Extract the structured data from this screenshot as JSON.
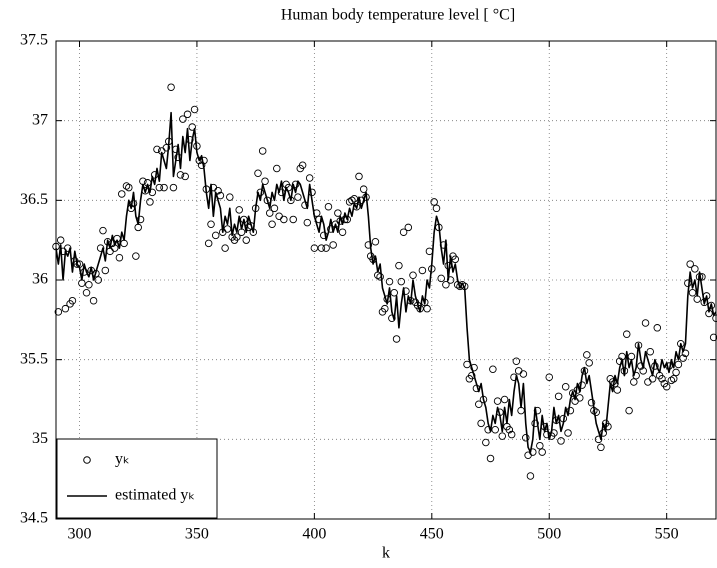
{
  "chart_data": {
    "type": "line",
    "title": "Human body temperature level [ °C]",
    "x_label": "k",
    "xlim": [
      290,
      571
    ],
    "ylim": [
      34.5,
      37.5
    ],
    "xticks": [
      300,
      350,
      400,
      450,
      500,
      550
    ],
    "yticks": [
      34.5,
      35,
      35.5,
      36,
      36.5,
      37,
      37.5
    ],
    "grid": true,
    "legend": "lower left",
    "x": [
      290,
      291,
      292,
      293,
      294,
      295,
      296,
      297,
      298,
      299,
      300,
      301,
      302,
      303,
      304,
      305,
      306,
      307,
      308,
      309,
      310,
      311,
      312,
      313,
      314,
      315,
      316,
      317,
      318,
      319,
      320,
      321,
      322,
      323,
      324,
      325,
      326,
      327,
      328,
      329,
      330,
      331,
      332,
      333,
      334,
      335,
      336,
      337,
      338,
      339,
      340,
      341,
      342,
      343,
      344,
      345,
      346,
      347,
      348,
      349,
      350,
      351,
      352,
      353,
      354,
      355,
      356,
      357,
      358,
      359,
      360,
      361,
      362,
      363,
      364,
      365,
      366,
      367,
      368,
      369,
      370,
      371,
      372,
      373,
      374,
      375,
      376,
      377,
      378,
      379,
      380,
      381,
      382,
      383,
      384,
      385,
      386,
      387,
      388,
      389,
      390,
      391,
      392,
      393,
      394,
      395,
      396,
      397,
      398,
      399,
      400,
      401,
      402,
      403,
      404,
      405,
      406,
      407,
      408,
      409,
      410,
      411,
      412,
      413,
      414,
      415,
      416,
      417,
      418,
      419,
      420,
      421,
      422,
      423,
      424,
      425,
      426,
      427,
      428,
      429,
      430,
      431,
      432,
      433,
      434,
      435,
      436,
      437,
      438,
      439,
      440,
      441,
      442,
      443,
      444,
      445,
      446,
      447,
      448,
      449,
      450,
      451,
      452,
      453,
      454,
      455,
      456,
      457,
      458,
      459,
      460,
      461,
      462,
      463,
      464,
      465,
      466,
      467,
      468,
      469,
      470,
      471,
      472,
      473,
      474,
      475,
      476,
      477,
      478,
      479,
      480,
      481,
      482,
      483,
      484,
      485,
      486,
      487,
      488,
      489,
      490,
      491,
      492,
      493,
      494,
      495,
      496,
      497,
      498,
      499,
      500,
      501,
      502,
      503,
      504,
      505,
      506,
      507,
      508,
      509,
      510,
      511,
      512,
      513,
      514,
      515,
      516,
      517,
      518,
      519,
      520,
      521,
      522,
      523,
      524,
      525,
      526,
      527,
      528,
      529,
      530,
      531,
      532,
      533,
      534,
      535,
      536,
      537,
      538,
      539,
      540,
      541,
      542,
      543,
      544,
      545,
      546,
      547,
      548,
      549,
      550,
      551,
      552,
      553,
      554,
      555,
      556,
      557,
      558,
      559,
      560,
      561,
      562,
      563,
      564,
      565,
      566,
      567,
      568,
      569,
      570,
      571
    ],
    "series": [
      {
        "name": "yₖ",
        "color": "#000000",
        "mode": "markers",
        "values": [
          36.21,
          35.8,
          36.25,
          36.18,
          35.82,
          36.2,
          35.85,
          35.87,
          36.12,
          36.1,
          36.1,
          35.98,
          36.05,
          35.92,
          35.97,
          36.06,
          35.87,
          36.04,
          36.0,
          36.2,
          36.31,
          36.06,
          36.24,
          36.18,
          36.23,
          36.2,
          36.26,
          36.14,
          36.54,
          36.23,
          36.59,
          36.58,
          36.45,
          36.48,
          36.15,
          36.33,
          36.38,
          36.62,
          36.56,
          36.61,
          36.49,
          36.55,
          36.66,
          36.82,
          36.58,
          36.81,
          36.58,
          36.83,
          36.87,
          37.21,
          36.58,
          36.82,
          36.77,
          36.66,
          37.01,
          36.65,
          37.04,
          36.88,
          36.96,
          37.07,
          36.84,
          36.75,
          36.72,
          36.75,
          36.57,
          36.23,
          36.35,
          36.58,
          36.28,
          36.56,
          36.53,
          36.3,
          36.2,
          36.32,
          36.52,
          36.27,
          36.25,
          36.27,
          36.44,
          36.3,
          36.38,
          36.25,
          36.33,
          36.34,
          36.3,
          36.45,
          36.67,
          36.55,
          36.81,
          36.62,
          36.5,
          36.42,
          36.35,
          36.45,
          36.7,
          36.4,
          36.55,
          36.38,
          36.6,
          36.58,
          36.5,
          36.38,
          36.6,
          36.52,
          36.7,
          36.72,
          36.47,
          36.36,
          36.64,
          36.55,
          36.2,
          36.42,
          36.38,
          36.2,
          36.28,
          36.2,
          36.46,
          36.32,
          36.22,
          36.35,
          36.42,
          36.37,
          36.3,
          36.38,
          36.38,
          36.49,
          36.5,
          36.51,
          36.46,
          36.65,
          36.5,
          36.57,
          36.52,
          36.22,
          36.15,
          36.13,
          36.24,
          36.03,
          36.02,
          35.8,
          35.82,
          35.88,
          35.99,
          35.76,
          35.92,
          35.63,
          36.09,
          35.99,
          36.3,
          35.93,
          36.33,
          35.87,
          36.03,
          35.86,
          35.84,
          35.82,
          36.06,
          35.86,
          35.82,
          36.18,
          36.07,
          36.49,
          36.45,
          36.33,
          36.01,
          36.22,
          35.97,
          36.09,
          36.0,
          36.15,
          36.13,
          35.97,
          35.96,
          35.97,
          35.96,
          35.47,
          35.38,
          35.4,
          35.45,
          35.32,
          35.22,
          35.1,
          35.25,
          34.98,
          35.06,
          34.88,
          35.44,
          35.06,
          35.24,
          35.17,
          35.02,
          35.25,
          35.08,
          35.06,
          35.03,
          35.39,
          35.49,
          35.43,
          35.18,
          35.41,
          35.01,
          34.9,
          34.77,
          34.92,
          35.1,
          35.18,
          34.96,
          34.92,
          35.08,
          35.03,
          35.39,
          35.02,
          35.04,
          35.12,
          35.27,
          34.99,
          35.13,
          35.33,
          35.04,
          35.18,
          35.29,
          35.24,
          35.31,
          35.26,
          35.34,
          35.43,
          35.53,
          35.48,
          35.23,
          35.18,
          35.17,
          35.0,
          34.95,
          35.04,
          35.1,
          35.08,
          35.38,
          35.36,
          35.35,
          35.31,
          35.49,
          35.52,
          35.43,
          35.66,
          35.18,
          35.52,
          35.36,
          35.4,
          35.59,
          35.46,
          35.43,
          35.73,
          35.36,
          35.55,
          35.38,
          35.46,
          35.7,
          35.4,
          35.38,
          35.35,
          35.33,
          35.46,
          35.37,
          35.38,
          35.42,
          35.47,
          35.6,
          35.51,
          35.54,
          35.98,
          36.1,
          35.92,
          36.07,
          35.88,
          36.02,
          36.02,
          35.86,
          35.9,
          35.79,
          35.84,
          35.64,
          35.76
        ]
      },
      {
        "name": "estimated yₖ",
        "color": "#000000",
        "mode": "lines",
        "values": [
          36.2,
          36.1,
          36.22,
          36.0,
          36.18,
          36.15,
          36.2,
          36.05,
          36.18,
          36.1,
          36.08,
          36.0,
          36.1,
          36.05,
          36.02,
          36.08,
          36.0,
          36.05,
          36.1,
          36.15,
          36.2,
          36.12,
          36.25,
          36.2,
          36.28,
          36.22,
          36.25,
          36.2,
          36.3,
          36.25,
          36.4,
          36.5,
          36.45,
          36.55,
          36.4,
          36.35,
          36.5,
          36.6,
          36.55,
          36.6,
          36.55,
          36.65,
          36.6,
          36.7,
          36.62,
          36.8,
          36.75,
          36.7,
          36.85,
          37.05,
          36.65,
          36.75,
          36.85,
          36.7,
          36.9,
          36.8,
          36.95,
          36.75,
          36.88,
          36.95,
          36.8,
          36.75,
          36.78,
          36.7,
          36.55,
          36.45,
          36.6,
          36.4,
          36.55,
          36.5,
          36.45,
          36.3,
          36.4,
          36.35,
          36.45,
          36.28,
          36.35,
          36.3,
          36.4,
          36.32,
          36.38,
          36.3,
          36.4,
          36.35,
          36.3,
          36.45,
          36.55,
          36.5,
          36.6,
          36.55,
          36.5,
          36.45,
          36.55,
          36.5,
          36.6,
          36.55,
          36.62,
          36.5,
          36.58,
          36.55,
          36.5,
          36.6,
          36.55,
          36.62,
          36.6,
          36.55,
          36.5,
          36.45,
          36.6,
          36.5,
          36.4,
          36.35,
          36.3,
          36.4,
          36.35,
          36.25,
          36.3,
          36.38,
          36.3,
          36.35,
          36.3,
          36.4,
          36.35,
          36.42,
          36.38,
          36.45,
          36.4,
          36.48,
          36.45,
          36.52,
          36.45,
          36.5,
          36.55,
          36.4,
          36.2,
          36.1,
          36.15,
          36.05,
          36.1,
          35.95,
          35.9,
          35.85,
          35.95,
          35.8,
          35.75,
          35.9,
          35.7,
          35.85,
          35.95,
          35.8,
          35.9,
          35.85,
          36.0,
          35.9,
          35.85,
          35.8,
          35.9,
          35.85,
          36.0,
          35.95,
          36.1,
          36.3,
          36.4,
          36.35,
          36.2,
          36.1,
          36.25,
          36.0,
          36.15,
          36.05,
          36.1,
          36.0,
          35.95,
          35.98,
          35.95,
          35.7,
          35.5,
          35.45,
          35.4,
          35.35,
          35.3,
          35.35,
          35.25,
          35.2,
          35.1,
          35.05,
          35.15,
          35.1,
          35.2,
          35.15,
          35.05,
          35.2,
          35.1,
          35.25,
          35.15,
          35.3,
          35.4,
          35.35,
          35.2,
          35.35,
          35.1,
          34.95,
          34.92,
          35.0,
          35.2,
          35.1,
          35.0,
          35.15,
          35.05,
          35.1,
          35.0,
          35.05,
          35.2,
          35.1,
          35.15,
          35.05,
          35.1,
          35.2,
          35.15,
          35.25,
          35.3,
          35.25,
          35.35,
          35.3,
          35.4,
          35.45,
          35.35,
          35.4,
          35.3,
          35.2,
          35.1,
          35.05,
          35.0,
          35.1,
          35.05,
          35.2,
          35.35,
          35.3,
          35.4,
          35.35,
          35.45,
          35.5,
          35.4,
          35.55,
          35.45,
          35.5,
          35.4,
          35.45,
          35.6,
          35.5,
          35.45,
          35.55,
          35.5,
          35.45,
          35.4,
          35.5,
          35.45,
          35.42,
          35.5,
          35.45,
          35.48,
          35.42,
          35.5,
          35.45,
          35.55,
          35.5,
          35.6,
          35.55,
          35.6,
          35.9,
          36.05,
          35.95,
          36.0,
          35.9,
          36.05,
          35.95,
          35.85,
          35.9,
          35.8,
          35.85,
          35.78,
          35.8
        ]
      }
    ]
  }
}
